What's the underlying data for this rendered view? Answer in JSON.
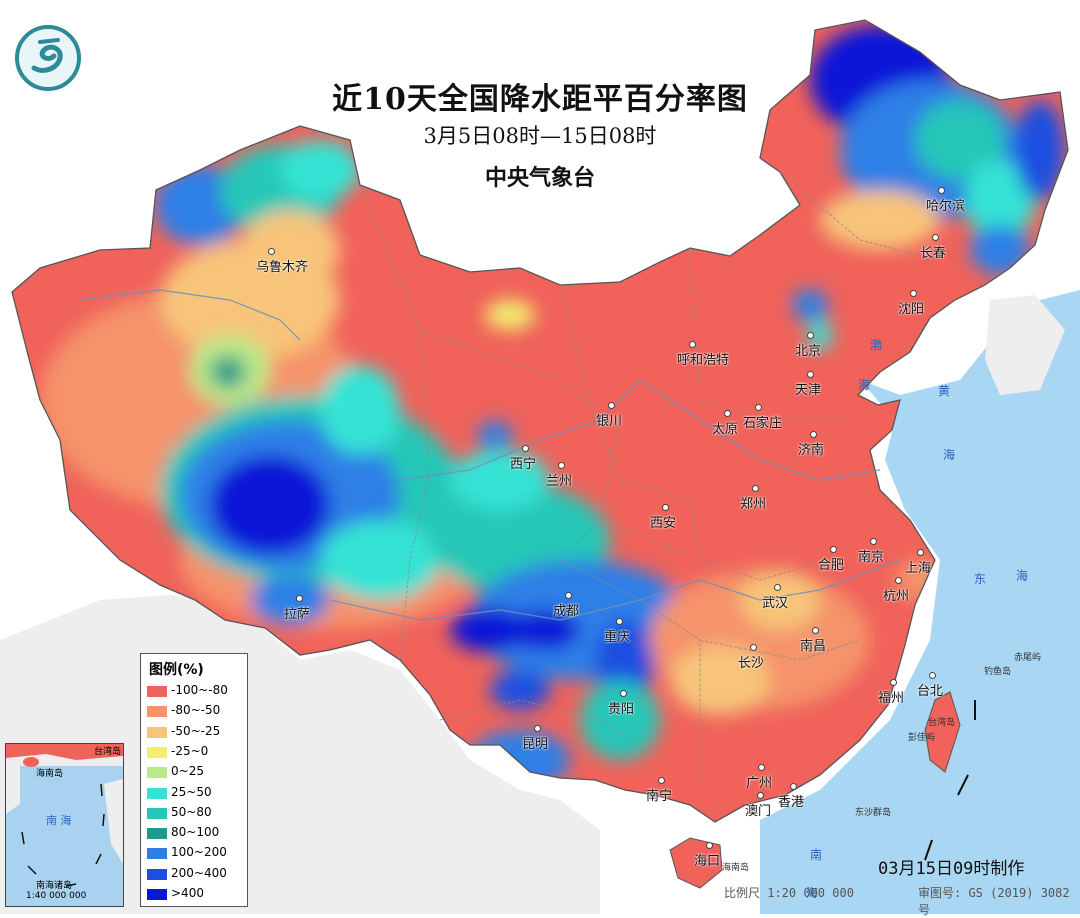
{
  "map": {
    "title": "近10天全国降水距平百分率图",
    "subtitle": "3月5日08时—15日08时",
    "organization": "中央气象台",
    "made_time": "03月15日09时制作",
    "scale": "比例尺 1:20 000 000",
    "approval_no": "审图号: GS (2019) 3082号"
  },
  "legend": {
    "title": "图例(%)",
    "items": [
      {
        "label": "-100~-80",
        "color": "#f0625a"
      },
      {
        "label": "-80~-50",
        "color": "#f5936a"
      },
      {
        "label": "-50~-25",
        "color": "#f7c479"
      },
      {
        "label": "-25~0",
        "color": "#f3ef6e"
      },
      {
        "label": "0~25",
        "color": "#b8ea8a"
      },
      {
        "label": "25~50",
        "color": "#35e3d4"
      },
      {
        "label": "50~80",
        "color": "#25c7b8"
      },
      {
        "label": "80~100",
        "color": "#1c9b8c"
      },
      {
        "label": "100~200",
        "color": "#2d7fe6"
      },
      {
        "label": "200~400",
        "color": "#1a4fe0"
      },
      {
        "label": ">400",
        "color": "#0a18d6"
      }
    ]
  },
  "cities": [
    {
      "name": "乌鲁木齐"
    },
    {
      "name": "哈尔滨"
    },
    {
      "name": "长春"
    },
    {
      "name": "沈阳"
    },
    {
      "name": "北京"
    },
    {
      "name": "呼和浩特"
    },
    {
      "name": "天津"
    },
    {
      "name": "石家庄"
    },
    {
      "name": "太原"
    },
    {
      "name": "济南"
    },
    {
      "name": "银川"
    },
    {
      "name": "西宁"
    },
    {
      "name": "兰州"
    },
    {
      "name": "西安"
    },
    {
      "name": "郑州"
    },
    {
      "name": "合肥"
    },
    {
      "name": "南京"
    },
    {
      "name": "上海"
    },
    {
      "name": "杭州"
    },
    {
      "name": "武汉"
    },
    {
      "name": "成都"
    },
    {
      "name": "重庆"
    },
    {
      "name": "拉萨"
    },
    {
      "name": "南昌"
    },
    {
      "name": "长沙"
    },
    {
      "name": "贵阳"
    },
    {
      "name": "昆明"
    },
    {
      "name": "福州"
    },
    {
      "name": "台北"
    },
    {
      "name": "广州"
    },
    {
      "name": "南宁"
    },
    {
      "name": "香港"
    },
    {
      "name": "澳门"
    },
    {
      "name": "海口"
    }
  ],
  "seas": [
    "渤",
    "海",
    "黄",
    "海",
    "东",
    "海",
    "南",
    "海",
    "台湾岛",
    "海南岛",
    "钓鱼岛",
    "赤尾屿",
    "彭佳屿",
    "东沙群岛"
  ],
  "inset": {
    "title_top": "台湾岛",
    "label_hainan": "海南岛",
    "label_sea": "南 海",
    "label_islands": "南海诸岛",
    "scale": "1:40 000 000"
  }
}
